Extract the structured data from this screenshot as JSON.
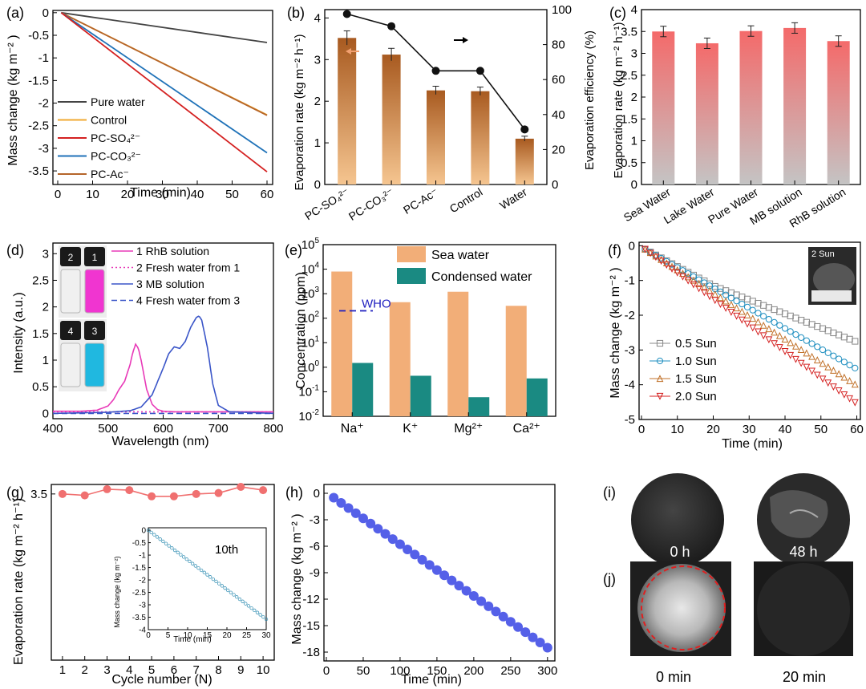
{
  "chart_data": [
    {
      "id": "a",
      "panel_label": "(a)",
      "type": "line",
      "xlabel": "Time (min)",
      "ylabel": "Mass change (kg m⁻² )",
      "xlim": [
        0,
        60
      ],
      "ylim": [
        -3.8,
        0.05
      ],
      "xticks": [
        0,
        10,
        20,
        30,
        40,
        50,
        60
      ],
      "yticks": [
        0,
        -0.5,
        -1,
        -1.5,
        -2,
        -2.5,
        -3,
        -3.5
      ],
      "ytick_labels": [
        "0",
        "-0.5",
        "-1",
        "-1.5",
        "-2",
        "-2.5",
        "-3",
        "-3.5"
      ],
      "series": [
        {
          "name": "Pure water",
          "color": "#444444",
          "x": [
            1,
            60
          ],
          "y": [
            0,
            -0.66
          ]
        },
        {
          "name": "Control",
          "color": "#f0a830",
          "x": [
            1,
            60
          ],
          "y": [
            0,
            -2.26
          ]
        },
        {
          "name": "PC-SO₄²⁻",
          "color": "#d42020",
          "x": [
            1,
            60
          ],
          "y": [
            0,
            -3.52
          ]
        },
        {
          "name": "PC-CO₃²⁻",
          "color": "#1f72b8",
          "x": [
            1,
            60
          ],
          "y": [
            0,
            -3.1
          ]
        },
        {
          "name": "PC-Ac⁻",
          "color": "#b5652a",
          "x": [
            1,
            60
          ],
          "y": [
            0,
            -2.27
          ]
        }
      ]
    },
    {
      "id": "b",
      "panel_label": "(b)",
      "type": "bar",
      "categories": [
        "PC-SO₄²⁻",
        "PC-CO₃²⁻",
        "PC-Ac⁻",
        "Control",
        "Water"
      ],
      "values": [
        3.52,
        3.12,
        2.26,
        2.24,
        1.1
      ],
      "errors": [
        0.17,
        0.15,
        0.1,
        0.1,
        0.06
      ],
      "ylabel": "Evaporation rate (kg m⁻² h⁻¹)",
      "ylim": [
        0,
        4.2
      ],
      "yticks": [
        0,
        1,
        2,
        3,
        4
      ],
      "y2label": "Evaporation efficiency (%)",
      "y2lim": [
        0,
        100
      ],
      "y2ticks": [
        0,
        20,
        40,
        60,
        80,
        100
      ],
      "efficiency": [
        97.5,
        90.5,
        65,
        65,
        31.5
      ],
      "efficiency_errors": [
        2,
        2,
        2,
        2,
        2
      ]
    },
    {
      "id": "c",
      "panel_label": "(c)",
      "type": "bar",
      "categories": [
        "Sea Water",
        "Lake Water",
        "Pure Water",
        "MB solution",
        "RhB solution"
      ],
      "values": [
        3.5,
        3.23,
        3.51,
        3.58,
        3.28
      ],
      "errors": [
        0.12,
        0.12,
        0.12,
        0.12,
        0.12
      ],
      "ylabel": "Evaporation rate (kg m⁻² h⁻¹)",
      "ylim": [
        0,
        4
      ],
      "yticks": [
        0,
        0.5,
        1,
        1.5,
        2,
        2.5,
        3,
        3.5,
        4
      ],
      "ytick_labels": [
        "0",
        "0.5",
        "1",
        "1.5",
        "2",
        "2.5",
        "3",
        "3.5",
        "4"
      ]
    },
    {
      "id": "d",
      "panel_label": "(d)",
      "type": "line",
      "xlabel": "Wavelength (nm)",
      "ylabel": "Intensity (a.u.)",
      "xlim": [
        400,
        800
      ],
      "ylim": [
        -0.1,
        3.2
      ],
      "xticks": [
        400,
        500,
        600,
        700,
        800
      ],
      "yticks": [
        0,
        0.5,
        1,
        1.5,
        2,
        2.5,
        3
      ],
      "ytick_labels": [
        "0",
        "0.5",
        "1",
        "1.5",
        "2",
        "2.5",
        "3"
      ],
      "series": [
        {
          "name": "1 RhB solution",
          "color": "#e83ab8",
          "style": "solid",
          "x": [
            400,
            450,
            480,
            500,
            510,
            520,
            530,
            540,
            545,
            550,
            555,
            560,
            570,
            580,
            590,
            600,
            620,
            650,
            800
          ],
          "y": [
            0.04,
            0.04,
            0.06,
            0.14,
            0.26,
            0.45,
            0.6,
            0.92,
            1.15,
            1.3,
            1.22,
            1.0,
            0.45,
            0.17,
            0.07,
            0.04,
            0.03,
            0.03,
            0.03
          ]
        },
        {
          "name": "2 Fresh water from 1",
          "color": "#e83ab8",
          "style": "dotted",
          "x": [
            400,
            800
          ],
          "y": [
            0.03,
            0.03
          ]
        },
        {
          "name": "3 MB solution",
          "color": "#3a55c8",
          "style": "solid",
          "x": [
            400,
            500,
            540,
            560,
            580,
            600,
            610,
            620,
            630,
            640,
            650,
            660,
            665,
            670,
            680,
            690,
            700,
            720,
            800
          ],
          "y": [
            0.0,
            0.02,
            0.05,
            0.12,
            0.35,
            0.85,
            1.12,
            1.25,
            1.22,
            1.35,
            1.62,
            1.8,
            1.83,
            1.75,
            1.25,
            0.55,
            0.15,
            0.03,
            0.0
          ]
        },
        {
          "name": "4 Fresh water from 3",
          "color": "#3a55c8",
          "style": "dashed",
          "x": [
            400,
            800
          ],
          "y": [
            0.0,
            0.0
          ]
        }
      ],
      "vial_labels": [
        "2",
        "1",
        "4",
        "3"
      ]
    },
    {
      "id": "e",
      "panel_label": "(e)",
      "type": "bar",
      "y_scale": "log",
      "categories": [
        "Na⁺",
        "K⁺",
        "Mg²⁺",
        "Ca²⁺"
      ],
      "series": [
        {
          "name": "Sea water",
          "color": "#f2ae78",
          "values": [
            8000,
            450,
            1200,
            320
          ]
        },
        {
          "name": "Condensed water",
          "color": "#1a8a82",
          "values": [
            1.5,
            0.45,
            0.06,
            0.35
          ]
        }
      ],
      "ylabel": "Concentration (ppm)",
      "ylim": [
        0.01,
        100000
      ],
      "ytick_exponents": [
        -2,
        -1,
        0,
        1,
        2,
        3,
        4,
        5
      ],
      "reference": {
        "label": "WHO",
        "value": 200
      }
    },
    {
      "id": "f",
      "panel_label": "(f)",
      "type": "line",
      "xlabel": "Time (min)",
      "ylabel": "Mass change (kg m⁻² )",
      "xlim": [
        0,
        61
      ],
      "ylim": [
        -5,
        0.1
      ],
      "xticks": [
        0,
        10,
        20,
        30,
        40,
        50,
        60
      ],
      "yticks": [
        0,
        -1,
        -2,
        -3,
        -4,
        -5
      ],
      "series": [
        {
          "name": "0.5 Sun",
          "color": "#888888",
          "marker": "square",
          "x": [
            1,
            20,
            60
          ],
          "y": [
            -0.1,
            -1.15,
            -2.77
          ]
        },
        {
          "name": "1.0 Sun",
          "color": "#1f8fc0",
          "marker": "circle",
          "x": [
            1,
            60
          ],
          "y": [
            -0.1,
            -3.55
          ]
        },
        {
          "name": "1.5 Sun",
          "color": "#c07028",
          "marker": "triangle-up",
          "x": [
            1,
            60
          ],
          "y": [
            -0.1,
            -4.02
          ]
        },
        {
          "name": "2.0 Sun",
          "color": "#d42020",
          "marker": "triangle-down",
          "x": [
            1,
            60
          ],
          "y": [
            -0.1,
            -4.55
          ]
        }
      ],
      "inset_label": "2 Sun"
    },
    {
      "id": "g",
      "panel_label": "(g)",
      "type": "line",
      "xlabel": "Cycle number (N)",
      "ylabel": "Evaporation rate (kg m⁻² h⁻¹)",
      "xlim": [
        0.5,
        10.5
      ],
      "ylim": [
        0,
        3.7
      ],
      "xticks": [
        1,
        2,
        3,
        4,
        5,
        6,
        7,
        8,
        9,
        10
      ],
      "x": [
        1,
        2,
        3,
        4,
        5,
        6,
        7,
        8,
        9,
        10
      ],
      "values": [
        3.5,
        3.47,
        3.6,
        3.58,
        3.45,
        3.45,
        3.5,
        3.52,
        3.65,
        3.58
      ],
      "series_color": "#f07070",
      "inset": {
        "title": "10th",
        "xlabel": "Time (min)",
        "ylabel": "Mass change (kg m⁻²)",
        "xlim": [
          0,
          30
        ],
        "ylim": [
          -4,
          0.1
        ],
        "xticks": [
          0,
          5,
          10,
          15,
          20,
          25,
          30
        ],
        "yticks": [
          0,
          -0.5,
          -1,
          -1.5,
          -2,
          -2.5,
          -3,
          -3.5,
          -4
        ],
        "ytick_labels": [
          "0",
          "-0.5",
          "-1",
          "-1.5",
          "-2",
          "-2.5",
          "-3",
          "-3.5",
          "-4"
        ],
        "x": [
          0,
          30
        ],
        "y": [
          0,
          -3.58
        ]
      }
    },
    {
      "id": "h",
      "panel_label": "(h)",
      "type": "scatter",
      "xlabel": "Time (min)",
      "ylabel": "Mass change (kg m⁻² )",
      "xlim": [
        0,
        310
      ],
      "ylim": [
        -19,
        1
      ],
      "xticks": [
        0,
        50,
        100,
        150,
        200,
        250,
        300
      ],
      "yticks": [
        0,
        -3,
        -6,
        -9,
        -12,
        -15,
        -18
      ],
      "x_start": 10,
      "x_end": 300,
      "x_step": 10,
      "y_start": -0.5,
      "y_end": -17.5,
      "color": "#5560e8"
    },
    {
      "id": "i",
      "panel_label": "(i)",
      "type": "image",
      "photo_labels": [
        "0 h",
        "48 h"
      ]
    },
    {
      "id": "j",
      "panel_label": "(j)",
      "type": "image",
      "photo_labels": [
        "0 min",
        "20 min"
      ]
    }
  ]
}
